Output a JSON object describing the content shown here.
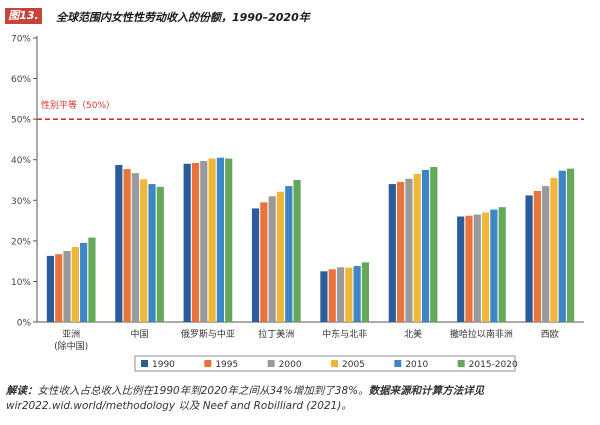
{
  "figure": {
    "badge": "图13.",
    "title": "全球范围内女性性劳动收入的份额，1990–2020年"
  },
  "chart_data": {
    "type": "bar",
    "title": "全球范围内女性性劳动收入的份额，1990–2020年",
    "categories": [
      [
        "亚洲",
        "(除中国)"
      ],
      [
        "中国"
      ],
      [
        "俄罗斯与中亚"
      ],
      [
        "拉丁美洲"
      ],
      [
        "中东与北非"
      ],
      [
        "北美"
      ],
      [
        "撒哈拉以南非洲"
      ],
      [
        "西欧"
      ]
    ],
    "series": [
      {
        "name": "1990",
        "color": "#2b5d9b",
        "values": [
          16.3,
          38.7,
          39.0,
          28.0,
          12.5,
          34.0,
          26.0,
          31.2
        ]
      },
      {
        "name": "1995",
        "color": "#e8743b",
        "values": [
          16.7,
          37.7,
          39.2,
          29.5,
          13.0,
          34.5,
          26.2,
          32.3
        ]
      },
      {
        "name": "2000",
        "color": "#9a9a9a",
        "values": [
          17.5,
          36.7,
          39.7,
          31.0,
          13.5,
          35.3,
          26.5,
          33.5
        ]
      },
      {
        "name": "2005",
        "color": "#f0b63a",
        "values": [
          18.5,
          35.2,
          40.3,
          32.1,
          13.4,
          36.5,
          27.0,
          35.5
        ]
      },
      {
        "name": "2010",
        "color": "#3d86c6",
        "values": [
          19.5,
          34.0,
          40.5,
          33.5,
          13.8,
          37.5,
          27.7,
          37.3
        ]
      },
      {
        "name": "2015-2020",
        "color": "#64a95a",
        "values": [
          20.8,
          33.3,
          40.3,
          35.0,
          14.7,
          38.2,
          28.3,
          37.8
        ]
      }
    ],
    "ylim": [
      0,
      70
    ],
    "yticks": [
      "0%",
      "10%",
      "20%",
      "30%",
      "40%",
      "50%",
      "60%",
      "70%"
    ],
    "reference_line": {
      "value": 50,
      "label": "性别平等（50%）",
      "color": "#d9352b"
    },
    "grid": false,
    "legend": "bottom"
  },
  "caption": {
    "lead": "解读：",
    "text1": "女性收入占总收入比例在1990年到2020年之间从34%增加到了38%。",
    "bold": "数据来源和计算方法详见",
    "text2": "wir2022.wid.world/methodology 以及 Neef and Robilliard (2021)。"
  }
}
